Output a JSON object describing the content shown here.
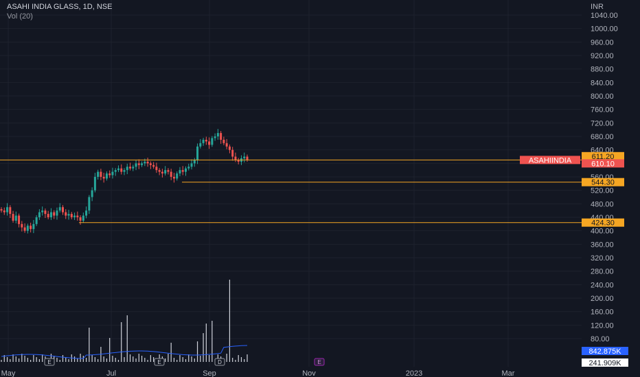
{
  "header": {
    "title": "ASAHI INDIA GLASS, 1D, NSE",
    "volume_label": "Vol (20)"
  },
  "colors": {
    "background": "#131722",
    "up": "#26a69a",
    "down": "#ef5350",
    "level_line": "#f5a623",
    "volume_bar": "#d1d4dc",
    "volume_ma": "#2962ff",
    "axis_text": "#b2b5be"
  },
  "chart_data": {
    "type": "candlestick",
    "currency": "INR",
    "price_axis_ticks": [
      "1040.00",
      "1000.00",
      "960.00",
      "920.00",
      "880.00",
      "840.00",
      "800.00",
      "760.00",
      "720.00",
      "680.00",
      "640.00",
      "600.00",
      "560.00",
      "520.00",
      "480.00",
      "440.00",
      "400.00",
      "360.00",
      "320.00",
      "280.00",
      "240.00",
      "200.00",
      "160.00",
      "120.00",
      "80.00"
    ],
    "time_axis_ticks": [
      "May",
      "Jul",
      "Sep",
      "Nov",
      "2023",
      "Mar"
    ],
    "ylim": [
      20,
      1080
    ],
    "close_series": [
      460,
      455,
      470,
      450,
      430,
      445,
      420,
      410,
      400,
      415,
      405,
      420,
      440,
      455,
      460,
      450,
      440,
      455,
      445,
      460,
      470,
      455,
      445,
      450,
      440,
      445,
      440,
      430,
      445,
      460,
      500,
      520,
      560,
      575,
      560,
      555,
      570,
      565,
      575,
      580,
      585,
      575,
      580,
      590,
      585,
      590,
      600,
      595,
      600,
      605,
      600,
      595,
      590,
      580,
      575,
      570,
      580,
      575,
      560,
      555,
      570,
      580,
      575,
      585,
      590,
      600,
      610,
      650,
      660,
      670,
      665,
      655,
      675,
      680,
      690,
      670,
      660,
      650,
      640,
      620,
      610,
      605,
      615,
      620,
      611
    ],
    "price_labels": [
      {
        "text": "611.20",
        "value": 611.2,
        "style": "orange"
      },
      {
        "text": "610.10",
        "value": 610.1,
        "style": "red"
      },
      {
        "text": "544.30",
        "value": 544.3,
        "style": "orange"
      },
      {
        "text": "424.30",
        "value": 424.3,
        "style": "orange"
      }
    ],
    "symbol_tag": "ASAHIINDIA",
    "levels": [
      610.1,
      544.3,
      424.3
    ],
    "volume_labels": [
      {
        "text": "842.875K",
        "style": "blue"
      },
      {
        "text": "241.909K",
        "style": "white"
      }
    ],
    "event_markers": [
      {
        "label": "E",
        "position": "before-jun"
      },
      {
        "label": "E",
        "position": "aug"
      },
      {
        "label": "D",
        "position": "sep"
      },
      {
        "label": "E",
        "position": "nov"
      }
    ]
  }
}
